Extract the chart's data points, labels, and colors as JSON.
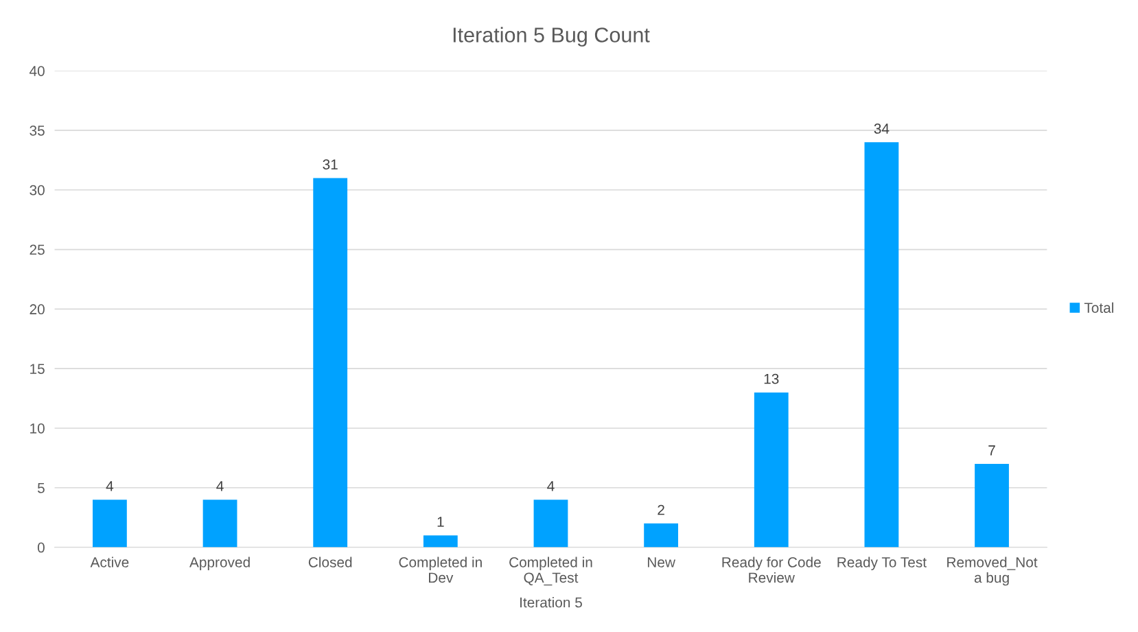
{
  "chart_data": {
    "type": "bar",
    "title": "Iteration 5 Bug Count",
    "xlabel": "Iteration 5",
    "categories": [
      "Active",
      "Approved",
      "Closed",
      "Completed in\nDev",
      "Completed in\nQA_Test",
      "New",
      "Ready for Code\nReview",
      "Ready To Test",
      "Removed_Not\na bug"
    ],
    "series": [
      {
        "name": "Total",
        "color": "#00a2ff",
        "values": [
          4,
          4,
          31,
          1,
          4,
          2,
          13,
          34,
          7
        ]
      }
    ],
    "ylim": [
      0,
      40
    ],
    "yticks": [
      0,
      5,
      10,
      15,
      20,
      25,
      30,
      35,
      40
    ],
    "grid": "y",
    "legend": "right",
    "data_labels": true
  }
}
